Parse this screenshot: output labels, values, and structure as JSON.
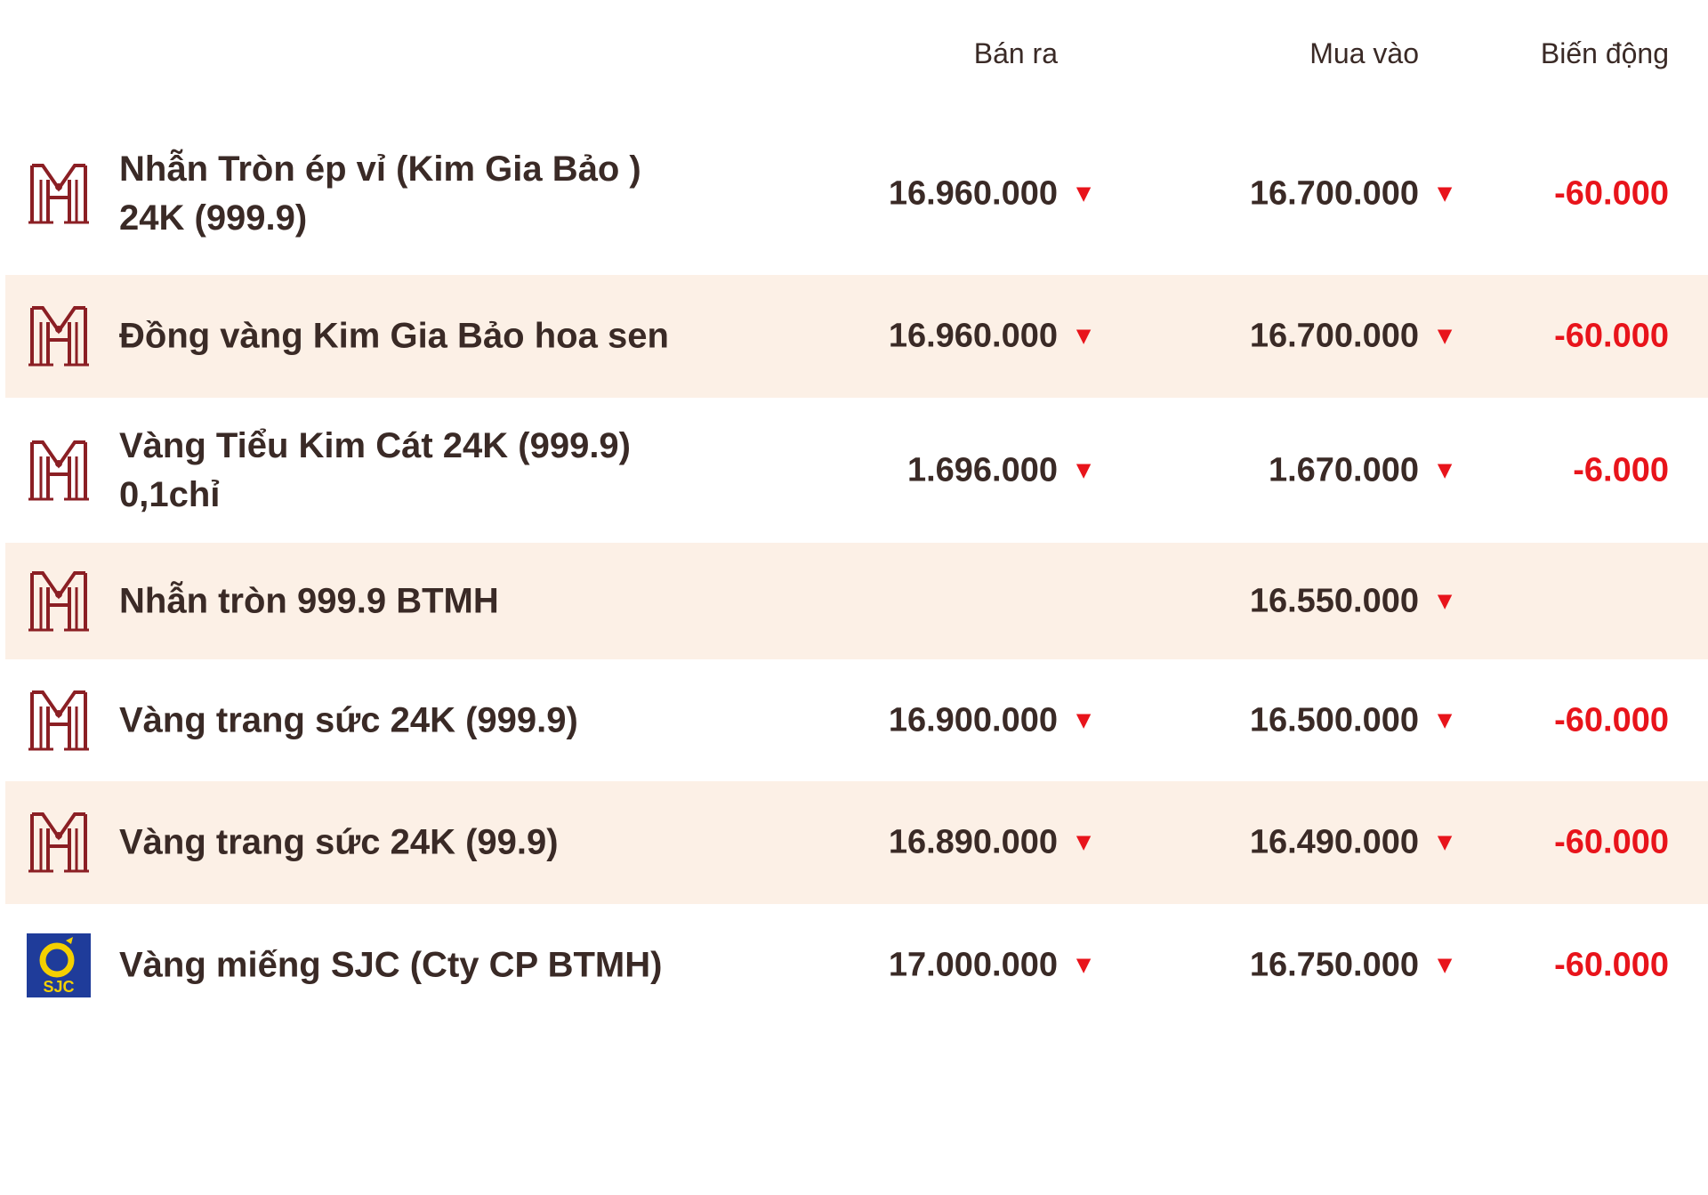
{
  "header": {
    "sell_label": "Bán ra",
    "buy_label": "Mua vào",
    "change_label": "Biến động"
  },
  "colors": {
    "brand_red": "#8b1f24",
    "down_red": "#e8141b",
    "row_alt_bg": "#fcf0e6",
    "text_dark": "#3a2a26",
    "sjc_blue": "#1f3c9a",
    "sjc_yellow": "#f4d000"
  },
  "rows": [
    {
      "logo": "btmh-logo",
      "name": "Nhẫn Tròn ép vỉ (Kim Gia Bảo ) 24K (999.9)",
      "sell": "16.960.000",
      "sell_trend": "down",
      "buy": "16.700.000",
      "buy_trend": "down",
      "change": "-60.000"
    },
    {
      "logo": "btmh-logo",
      "name": "Đồng vàng Kim Gia Bảo hoa sen",
      "sell": "16.960.000",
      "sell_trend": "down",
      "buy": "16.700.000",
      "buy_trend": "down",
      "change": "-60.000"
    },
    {
      "logo": "btmh-logo",
      "name": "Vàng Tiểu Kim Cát 24K (999.9) 0,1chỉ",
      "sell": "1.696.000",
      "sell_trend": "down",
      "buy": "1.670.000",
      "buy_trend": "down",
      "change": "-6.000"
    },
    {
      "logo": "btmh-logo",
      "name": "Nhẫn tròn 999.9 BTMH",
      "sell": "",
      "sell_trend": "",
      "buy": "16.550.000",
      "buy_trend": "down",
      "change": ""
    },
    {
      "logo": "btmh-logo",
      "name": "Vàng trang sức 24K (999.9)",
      "sell": "16.900.000",
      "sell_trend": "down",
      "buy": "16.500.000",
      "buy_trend": "down",
      "change": "-60.000"
    },
    {
      "logo": "btmh-logo",
      "name": "Vàng trang sức 24K (99.9)",
      "sell": "16.890.000",
      "sell_trend": "down",
      "buy": "16.490.000",
      "buy_trend": "down",
      "change": "-60.000"
    },
    {
      "logo": "sjc-logo",
      "logo_text": "SJC",
      "name": "Vàng miếng SJC (Cty CP BTMH)",
      "sell": "17.000.000",
      "sell_trend": "down",
      "buy": "16.750.000",
      "buy_trend": "down",
      "change": "-60.000"
    }
  ]
}
